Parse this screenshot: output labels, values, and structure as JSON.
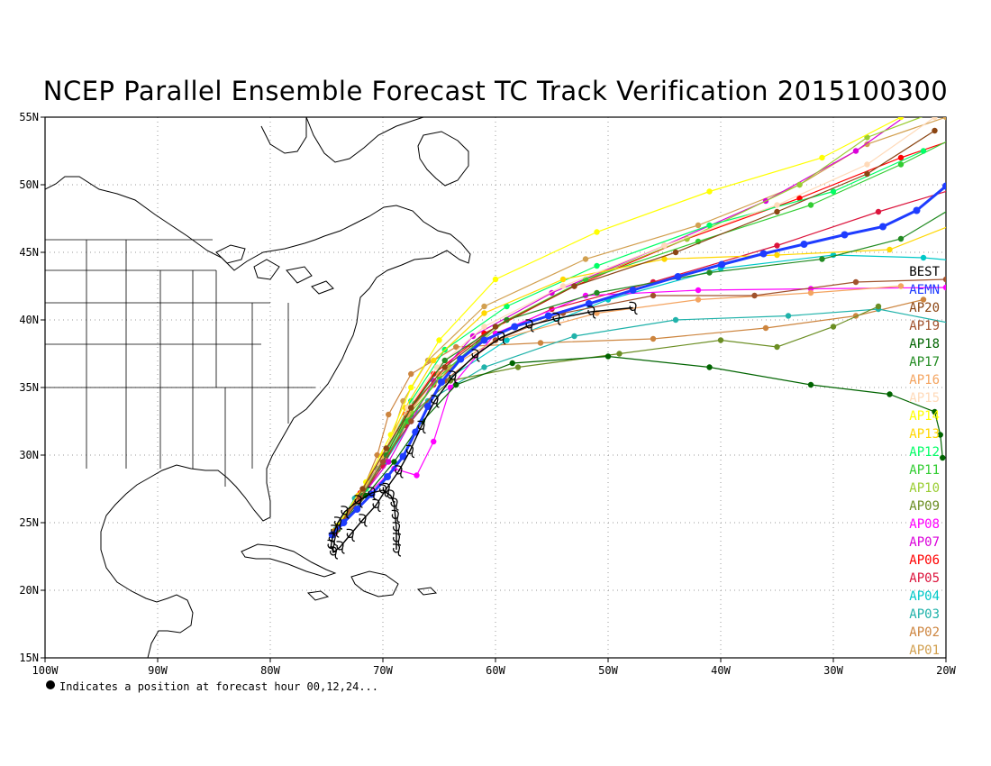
{
  "title": "NCEP Parallel Ensemble Forecast TC Track Verification 2015100300",
  "footnote": "Indicates a position at forecast hour 00,12,24...",
  "x_ticks": [
    "100W",
    "90W",
    "80W",
    "70W",
    "60W",
    "50W",
    "40W",
    "30W",
    "20W"
  ],
  "y_ticks": [
    "55N",
    "50N",
    "45N",
    "40N",
    "35N",
    "30N",
    "25N",
    "20N",
    "15N"
  ],
  "map_extent": {
    "lon": [
      -100,
      -20
    ],
    "lat": [
      15,
      55
    ]
  },
  "legend": [
    {
      "name": "BEST",
      "color": "#000000"
    },
    {
      "name": "AEMN",
      "color": "#1e3cff"
    },
    {
      "name": "AP20",
      "color": "#8b4513"
    },
    {
      "name": "AP19",
      "color": "#a0522d"
    },
    {
      "name": "AP18",
      "color": "#006400"
    },
    {
      "name": "AP17",
      "color": "#228b22"
    },
    {
      "name": "AP16",
      "color": "#f4a460"
    },
    {
      "name": "AP15",
      "color": "#ffdab9"
    },
    {
      "name": "AP14",
      "color": "#ffff00"
    },
    {
      "name": "AP13",
      "color": "#ffd700"
    },
    {
      "name": "AP12",
      "color": "#00ff66"
    },
    {
      "name": "AP11",
      "color": "#32cd32"
    },
    {
      "name": "AP10",
      "color": "#9acd32"
    },
    {
      "name": "AP09",
      "color": "#6b8e23"
    },
    {
      "name": "AP08",
      "color": "#ff00ff"
    },
    {
      "name": "AP07",
      "color": "#da00da"
    },
    {
      "name": "AP06",
      "color": "#ff0000"
    },
    {
      "name": "AP05",
      "color": "#dc143c"
    },
    {
      "name": "AP04",
      "color": "#00c8c8"
    },
    {
      "name": "AP03",
      "color": "#20b2aa"
    },
    {
      "name": "AP02",
      "color": "#cd853f"
    },
    {
      "name": "AP01",
      "color": "#d2a050"
    }
  ],
  "best_track": [
    [
      -68.8,
      23.0
    ],
    [
      -68.8,
      23.8
    ],
    [
      -68.8,
      24.6
    ],
    [
      -68.9,
      25.5
    ],
    [
      -69.0,
      26.4
    ],
    [
      -69.3,
      27.0
    ],
    [
      -70.0,
      27.4
    ],
    [
      -71.0,
      27.2
    ],
    [
      -72.2,
      26.6
    ],
    [
      -73.4,
      25.8
    ],
    [
      -74.0,
      25.0
    ],
    [
      -74.3,
      24.4
    ],
    [
      -74.5,
      23.8
    ],
    [
      -74.6,
      23.3
    ],
    [
      -74.4,
      22.8
    ],
    [
      -73.8,
      23.2
    ],
    [
      -72.9,
      24.1
    ],
    [
      -71.8,
      25.2
    ],
    [
      -70.6,
      26.3
    ],
    [
      -69.7,
      27.5
    ],
    [
      -68.6,
      28.8
    ],
    [
      -67.6,
      30.3
    ],
    [
      -66.6,
      32.1
    ],
    [
      -65.4,
      34.0
    ],
    [
      -63.8,
      35.8
    ],
    [
      -61.8,
      37.4
    ],
    [
      -59.5,
      38.7
    ],
    [
      -57.0,
      39.6
    ],
    [
      -54.6,
      40.1
    ],
    [
      -51.5,
      40.6
    ],
    [
      -47.8,
      40.9
    ]
  ],
  "aemn_track": [
    [
      -74.5,
      24.1
    ],
    [
      -73.5,
      25.0
    ],
    [
      -72.3,
      26.0
    ],
    [
      -71.0,
      27.1
    ],
    [
      -69.6,
      28.4
    ],
    [
      -68.2,
      29.9
    ],
    [
      -67.1,
      31.7
    ],
    [
      -66.0,
      33.6
    ],
    [
      -64.8,
      35.4
    ],
    [
      -63.1,
      37.1
    ],
    [
      -61.0,
      38.5
    ],
    [
      -58.3,
      39.5
    ],
    [
      -55.3,
      40.3
    ],
    [
      -51.7,
      41.2
    ],
    [
      -47.8,
      42.2
    ],
    [
      -43.8,
      43.2
    ],
    [
      -39.9,
      44.1
    ],
    [
      -36.2,
      44.9
    ],
    [
      -32.6,
      45.6
    ],
    [
      -29.0,
      46.3
    ],
    [
      -25.6,
      46.9
    ],
    [
      -22.6,
      48.1
    ],
    [
      -20.0,
      49.9
    ]
  ],
  "members": [
    {
      "name": "AP01",
      "color": "#d2a050",
      "pts": [
        [
          -74.0,
          24.8
        ],
        [
          -71.5,
          27.5
        ],
        [
          -69.5,
          30.5
        ],
        [
          -68.2,
          34.0
        ],
        [
          -66.0,
          37.0
        ],
        [
          -61.0,
          41.0
        ],
        [
          -52.0,
          44.5
        ],
        [
          -42.0,
          47.0
        ],
        [
          -33.0,
          50.0
        ],
        [
          -27.0,
          53.0
        ],
        [
          -20.0,
          55.0
        ]
      ]
    },
    {
      "name": "AP02",
      "color": "#cd853f",
      "pts": [
        [
          -74.0,
          24.6
        ],
        [
          -72.0,
          27.0
        ],
        [
          -70.5,
          30.0
        ],
        [
          -69.5,
          33.0
        ],
        [
          -67.5,
          36.0
        ],
        [
          -63.5,
          38.0
        ],
        [
          -56.0,
          38.3
        ],
        [
          -46.0,
          38.6
        ],
        [
          -36.0,
          39.4
        ],
        [
          -28.0,
          40.3
        ],
        [
          -22.0,
          41.5
        ]
      ]
    },
    {
      "name": "AP03",
      "color": "#20b2aa",
      "pts": [
        [
          -74.2,
          24.5
        ],
        [
          -72.5,
          26.8
        ],
        [
          -70.5,
          29.0
        ],
        [
          -68.5,
          31.8
        ],
        [
          -66.0,
          34.0
        ],
        [
          -61.0,
          36.5
        ],
        [
          -53.0,
          38.8
        ],
        [
          -44.0,
          40.0
        ],
        [
          -34.0,
          40.3
        ],
        [
          -26.0,
          40.8
        ],
        [
          -18.0,
          39.5
        ]
      ]
    },
    {
      "name": "AP04",
      "color": "#00c8c8",
      "pts": [
        [
          -74.0,
          24.5
        ],
        [
          -71.8,
          27.0
        ],
        [
          -69.8,
          29.5
        ],
        [
          -67.5,
          32.5
        ],
        [
          -64.5,
          35.5
        ],
        [
          -59.0,
          38.5
        ],
        [
          -50.0,
          41.5
        ],
        [
          -40.0,
          43.8
        ],
        [
          -30.0,
          44.8
        ],
        [
          -22.0,
          44.6
        ],
        [
          -18.0,
          44.3
        ]
      ]
    },
    {
      "name": "AP05",
      "color": "#dc143c",
      "pts": [
        [
          -74.2,
          24.3
        ],
        [
          -72.2,
          26.6
        ],
        [
          -70.0,
          29.2
        ],
        [
          -68.0,
          32.2
        ],
        [
          -65.5,
          35.2
        ],
        [
          -61.5,
          38.3
        ],
        [
          -55.0,
          40.8
        ],
        [
          -46.0,
          42.8
        ],
        [
          -35.0,
          45.5
        ],
        [
          -26.0,
          48.0
        ],
        [
          -18.0,
          50.0
        ]
      ]
    },
    {
      "name": "AP06",
      "color": "#ff0000",
      "pts": [
        [
          -74.0,
          24.6
        ],
        [
          -72.0,
          27.2
        ],
        [
          -70.0,
          30.0
        ],
        [
          -68.0,
          33.0
        ],
        [
          -65.5,
          36.0
        ],
        [
          -61.0,
          39.0
        ],
        [
          -53.0,
          42.5
        ],
        [
          -43.0,
          46.0
        ],
        [
          -33.0,
          49.0
        ],
        [
          -24.0,
          52.0
        ],
        [
          -17.0,
          54.0
        ]
      ]
    },
    {
      "name": "AP07",
      "color": "#da00da",
      "pts": [
        [
          -74.3,
          24.2
        ],
        [
          -72.0,
          26.8
        ],
        [
          -69.5,
          29.5
        ],
        [
          -67.5,
          32.5
        ],
        [
          -65.5,
          35.5
        ],
        [
          -62.0,
          38.8
        ],
        [
          -55.0,
          42.0
        ],
        [
          -45.0,
          45.5
        ],
        [
          -36.0,
          48.8
        ],
        [
          -28.0,
          52.5
        ],
        [
          -22.0,
          56.0
        ]
      ]
    },
    {
      "name": "AP08",
      "color": "#ff00ff",
      "pts": [
        [
          -74.0,
          24.5
        ],
        [
          -71.5,
          27.0
        ],
        [
          -69.0,
          29.0
        ],
        [
          -67.0,
          28.5
        ],
        [
          -65.5,
          31.0
        ],
        [
          -64.0,
          35.0
        ],
        [
          -60.0,
          39.0
        ],
        [
          -52.0,
          41.8
        ],
        [
          -42.0,
          42.2
        ],
        [
          -32.0,
          42.3
        ],
        [
          -20.0,
          42.4
        ]
      ]
    },
    {
      "name": "AP09",
      "color": "#6b8e23",
      "pts": [
        [
          -74.0,
          24.6
        ],
        [
          -71.5,
          27.5
        ],
        [
          -69.5,
          30.5
        ],
        [
          -67.5,
          33.0
        ],
        [
          -64.0,
          35.5
        ],
        [
          -58.0,
          36.5
        ],
        [
          -49.0,
          37.5
        ],
        [
          -40.0,
          38.5
        ],
        [
          -35.0,
          38.0
        ],
        [
          -30.0,
          39.5
        ],
        [
          -26.0,
          41.0
        ]
      ]
    },
    {
      "name": "AP10",
      "color": "#9acd32",
      "pts": [
        [
          -74.0,
          24.5
        ],
        [
          -71.8,
          27.2
        ],
        [
          -69.8,
          30.0
        ],
        [
          -67.5,
          33.2
        ],
        [
          -64.0,
          36.5
        ],
        [
          -59.0,
          40.0
        ],
        [
          -52.0,
          43.0
        ],
        [
          -43.0,
          46.0
        ],
        [
          -33.0,
          50.0
        ],
        [
          -27.0,
          53.5
        ],
        [
          -19.0,
          56.0
        ]
      ]
    },
    {
      "name": "AP11",
      "color": "#32cd32",
      "pts": [
        [
          -74.2,
          24.4
        ],
        [
          -72.0,
          26.8
        ],
        [
          -70.0,
          29.5
        ],
        [
          -67.8,
          32.5
        ],
        [
          -65.0,
          35.8
        ],
        [
          -60.0,
          39.5
        ],
        [
          -52.0,
          43.0
        ],
        [
          -42.0,
          45.8
        ],
        [
          -32.0,
          48.5
        ],
        [
          -24.0,
          51.5
        ],
        [
          -18.0,
          54.0
        ]
      ]
    },
    {
      "name": "AP12",
      "color": "#00ff66",
      "pts": [
        [
          -74.0,
          24.6
        ],
        [
          -71.5,
          27.5
        ],
        [
          -69.5,
          30.5
        ],
        [
          -67.5,
          34.0
        ],
        [
          -64.5,
          37.8
        ],
        [
          -59.0,
          41.0
        ],
        [
          -51.0,
          44.0
        ],
        [
          -41.0,
          47.0
        ],
        [
          -30.0,
          49.5
        ],
        [
          -22.0,
          52.5
        ]
      ]
    },
    {
      "name": "AP13",
      "color": "#ffd700",
      "pts": [
        [
          -74.3,
          24.4
        ],
        [
          -72.2,
          27.0
        ],
        [
          -70.0,
          30.0
        ],
        [
          -68.0,
          33.5
        ],
        [
          -65.5,
          37.0
        ],
        [
          -61.0,
          40.5
        ],
        [
          -54.0,
          43.0
        ],
        [
          -45.0,
          44.5
        ],
        [
          -35.0,
          44.8
        ],
        [
          -25.0,
          45.2
        ],
        [
          -18.0,
          47.5
        ]
      ]
    },
    {
      "name": "AP14",
      "color": "#ffff00",
      "pts": [
        [
          -74.0,
          24.8
        ],
        [
          -71.5,
          28.0
        ],
        [
          -69.3,
          31.5
        ],
        [
          -67.5,
          35.0
        ],
        [
          -65.0,
          38.5
        ],
        [
          -60.0,
          43.0
        ],
        [
          -51.0,
          46.5
        ],
        [
          -41.0,
          49.5
        ],
        [
          -31.0,
          52.0
        ],
        [
          -24.0,
          55.0
        ]
      ]
    },
    {
      "name": "AP15",
      "color": "#ffdab9",
      "pts": [
        [
          -74.0,
          24.6
        ],
        [
          -71.8,
          27.5
        ],
        [
          -69.7,
          30.5
        ],
        [
          -67.8,
          33.5
        ],
        [
          -65.2,
          36.5
        ],
        [
          -61.0,
          39.5
        ],
        [
          -54.0,
          42.5
        ],
        [
          -45.0,
          45.5
        ],
        [
          -35.0,
          48.5
        ],
        [
          -27.0,
          51.5
        ],
        [
          -21.0,
          55.0
        ]
      ]
    },
    {
      "name": "AP16",
      "color": "#f4a460",
      "pts": [
        [
          -74.2,
          24.4
        ],
        [
          -72.0,
          27.0
        ],
        [
          -69.8,
          30.0
        ],
        [
          -67.8,
          33.0
        ],
        [
          -65.0,
          36.0
        ],
        [
          -60.0,
          38.5
        ],
        [
          -51.0,
          40.5
        ],
        [
          -42.0,
          41.5
        ],
        [
          -32.0,
          42.0
        ],
        [
          -24.0,
          42.5
        ]
      ]
    },
    {
      "name": "AP17",
      "color": "#228b22",
      "pts": [
        [
          -74.0,
          24.5
        ],
        [
          -71.8,
          27.0
        ],
        [
          -69.7,
          30.0
        ],
        [
          -67.5,
          33.5
        ],
        [
          -64.5,
          37.0
        ],
        [
          -59.0,
          40.0
        ],
        [
          -51.0,
          42.0
        ],
        [
          -41.0,
          43.5
        ],
        [
          -31.0,
          44.5
        ],
        [
          -24.0,
          46.0
        ],
        [
          -18.0,
          49.0
        ]
      ]
    },
    {
      "name": "AP18",
      "color": "#006400",
      "pts": [
        [
          -74.0,
          24.5
        ],
        [
          -71.5,
          27.0
        ],
        [
          -69.0,
          29.5
        ],
        [
          -66.5,
          32.5
        ],
        [
          -63.5,
          35.2
        ],
        [
          -58.5,
          36.8
        ],
        [
          -50.0,
          37.3
        ],
        [
          -41.0,
          36.5
        ],
        [
          -32.0,
          35.2
        ],
        [
          -25.0,
          34.5
        ],
        [
          -21.0,
          33.2
        ],
        [
          -20.5,
          31.5
        ],
        [
          -20.3,
          29.8
        ]
      ]
    },
    {
      "name": "AP19",
      "color": "#a0522d",
      "pts": [
        [
          -74.2,
          24.4
        ],
        [
          -72.0,
          26.8
        ],
        [
          -70.0,
          29.5
        ],
        [
          -67.5,
          32.5
        ],
        [
          -64.5,
          35.5
        ],
        [
          -60.0,
          38.5
        ],
        [
          -54.0,
          40.5
        ],
        [
          -46.0,
          41.8
        ],
        [
          -37.0,
          41.8
        ],
        [
          -28.0,
          42.8
        ],
        [
          -20.0,
          43.0
        ]
      ]
    },
    {
      "name": "AP20",
      "color": "#8b4513",
      "pts": [
        [
          -74.0,
          24.6
        ],
        [
          -71.8,
          27.5
        ],
        [
          -69.7,
          30.5
        ],
        [
          -67.5,
          33.5
        ],
        [
          -64.5,
          36.5
        ],
        [
          -60.0,
          39.5
        ],
        [
          -53.0,
          42.5
        ],
        [
          -44.0,
          45.0
        ],
        [
          -35.0,
          48.0
        ],
        [
          -27.0,
          50.8
        ],
        [
          -21.0,
          54.0
        ]
      ]
    }
  ]
}
